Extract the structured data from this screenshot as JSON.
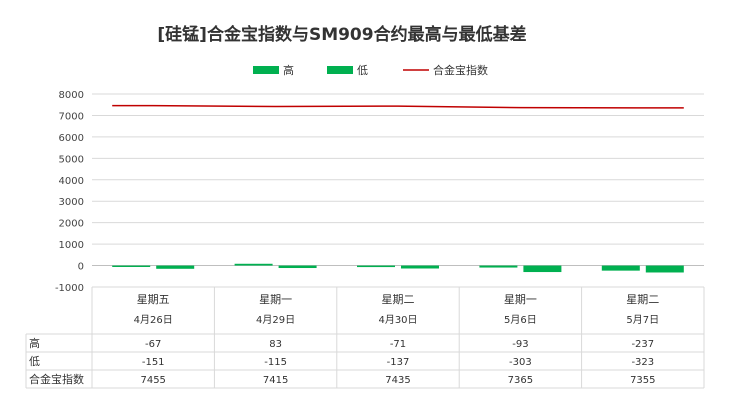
{
  "chart_data": {
    "type": "bar",
    "title": "[硅锰]合金宝指数与SM909合约最高与最低基差",
    "categories": [
      {
        "weekday": "星期五",
        "date": "4月26日"
      },
      {
        "weekday": "星期一",
        "date": "4月29日"
      },
      {
        "weekday": "星期二",
        "date": "4月30日"
      },
      {
        "weekday": "星期一",
        "date": "5月6日"
      },
      {
        "weekday": "星期二",
        "date": "5月7日"
      }
    ],
    "series": [
      {
        "name": "高",
        "kind": "bar",
        "color": "#00b050",
        "values": [
          -67,
          83,
          -71,
          -93,
          -237
        ]
      },
      {
        "name": "低",
        "kind": "bar",
        "color": "#00b050",
        "values": [
          -151,
          -115,
          -137,
          -303,
          -323
        ]
      },
      {
        "name": "合金宝指数",
        "kind": "line",
        "color": "#c00000",
        "values": [
          7455,
          7415,
          7435,
          7365,
          7355
        ]
      }
    ],
    "ylim": [
      -1000,
      8000
    ],
    "yticks": [
      8000,
      7000,
      6000,
      5000,
      4000,
      3000,
      2000,
      1000,
      0,
      -1000
    ],
    "legend_position": "top",
    "grid": true,
    "data_table": true
  }
}
